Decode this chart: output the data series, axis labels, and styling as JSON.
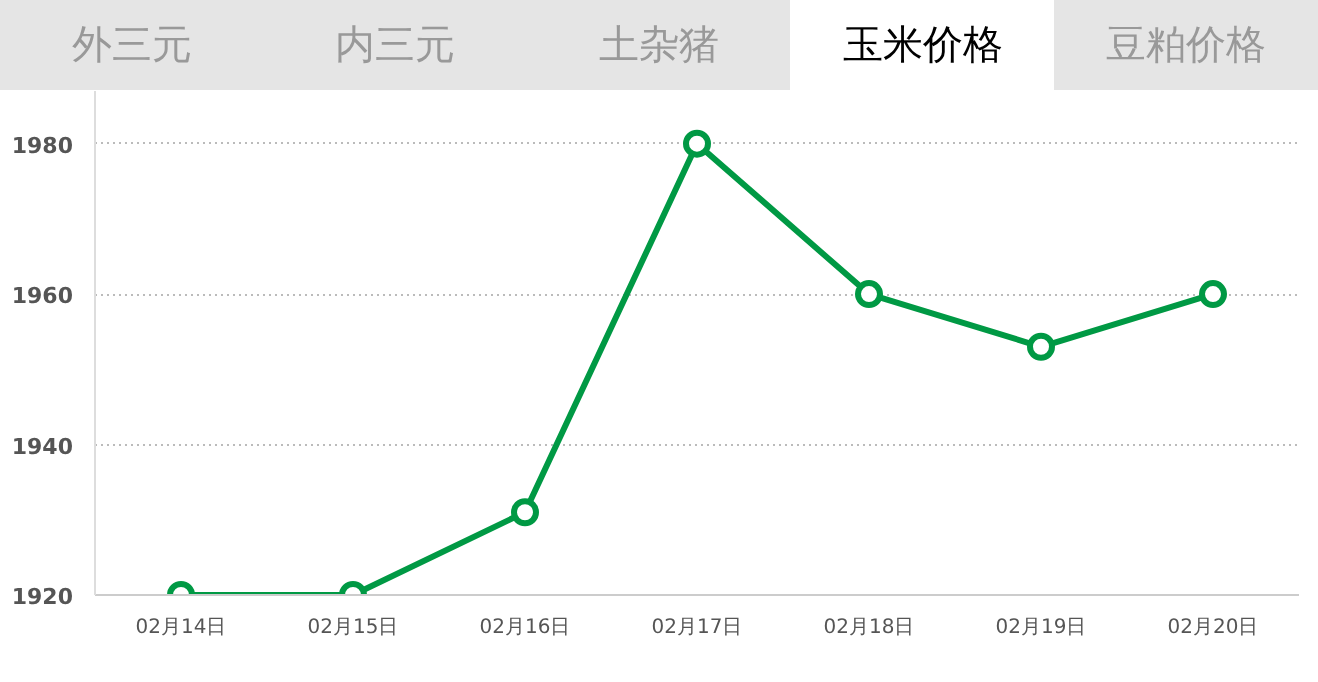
{
  "chart_data": {
    "type": "line",
    "title": "玉米价格",
    "annotations": [
      "外三元",
      "内三元",
      "土杂猪",
      "豆粕价格"
    ],
    "categories": [
      "02月14日",
      "02月15日",
      "02月16日",
      "02月17日",
      "02月18日",
      "02月19日",
      "02月20日"
    ],
    "series": [
      {
        "color": "#009944",
        "values": [
          1920,
          1920,
          1931,
          1980,
          1960,
          1953,
          1960
        ]
      }
    ],
    "ylim": [
      1920,
      1987
    ],
    "yticks": [
      1920,
      1940,
      1960,
      1980
    ],
    "grid": "y",
    "marker": "circle",
    "line_style": "solid"
  }
}
